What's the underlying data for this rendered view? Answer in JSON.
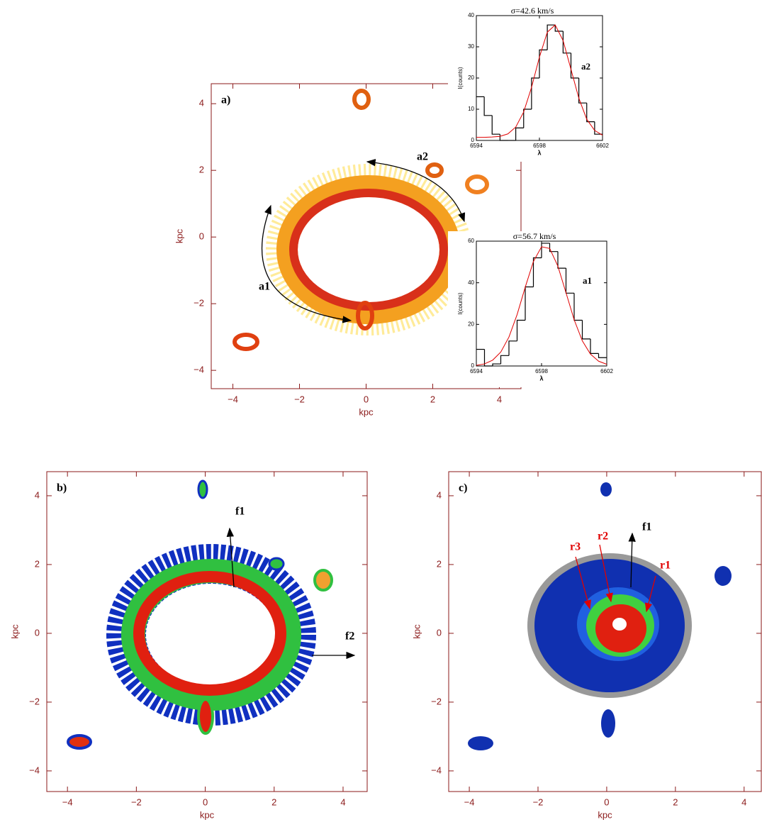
{
  "chart_data": [
    {
      "type": "image",
      "panel_label": "a)",
      "xlabel": "kpc",
      "ylabel": "kpc",
      "xlim": [
        -4.65,
        4.65
      ],
      "ylim": [
        -4.55,
        4.6
      ],
      "xticks": [
        {
          "value": -4,
          "label": "−4"
        },
        {
          "value": -2,
          "label": "−2"
        },
        0,
        2,
        4
      ],
      "yticks": [
        {
          "value": -4,
          "label": "−4"
        },
        {
          "value": -2,
          "label": "−2"
        },
        0,
        2,
        4
      ],
      "annotations": [
        "a1",
        "a2"
      ]
    },
    {
      "type": "image",
      "panel_label": "b)",
      "xlabel": "kpc",
      "ylabel": "kpc",
      "xlim": [
        -4.6,
        4.7
      ],
      "ylim": [
        -4.6,
        4.7
      ],
      "xticks": [
        {
          "value": -4,
          "label": "−4"
        },
        {
          "value": -2,
          "label": "−2"
        },
        0,
        2,
        4
      ],
      "yticks": [
        {
          "value": -4,
          "label": "−4"
        },
        {
          "value": -2,
          "label": "−2"
        },
        0,
        2,
        4
      ],
      "annotations": [
        "f1",
        "f2"
      ]
    },
    {
      "type": "image",
      "panel_label": "c)",
      "xlabel": "kpc",
      "ylabel": "kpc",
      "xlim": [
        -4.6,
        4.5
      ],
      "ylim": [
        -4.6,
        4.7
      ],
      "xticks": [
        {
          "value": -4,
          "label": "−4"
        },
        {
          "value": -2,
          "label": "−2"
        },
        0,
        2,
        4
      ],
      "yticks": [
        {
          "value": -4,
          "label": "−4"
        },
        {
          "value": -2,
          "label": "−2"
        },
        0,
        2,
        4
      ],
      "annotations": [
        "f1",
        "r1",
        "r2",
        "r3"
      ]
    },
    {
      "type": "histogram",
      "title": "σ=42.6  km/s",
      "xlabel": "λ",
      "ylabel": "I(counts)",
      "label": "a2",
      "xlim": [
        6594,
        6602
      ],
      "ylim": [
        0,
        40
      ],
      "xticks": [
        6594,
        6598,
        6602
      ],
      "yticks": [
        0,
        10,
        20,
        30,
        40
      ],
      "color": "#000000",
      "bins": [
        6594,
        6594.5,
        6595,
        6595.5,
        6596,
        6596.5,
        6597,
        6597.5,
        6598,
        6598.5,
        6599,
        6599.5,
        6600,
        6600.5,
        6601,
        6601.5,
        6602
      ],
      "counts": [
        14,
        8,
        2,
        0,
        0,
        4,
        10,
        20,
        29,
        37,
        35,
        28,
        20,
        12,
        6,
        2
      ],
      "fit": {
        "color": "#e00000",
        "x": [
          6594,
          6594.5,
          6595,
          6595.5,
          6596,
          6596.5,
          6597,
          6597.5,
          6598,
          6598.5,
          6599,
          6599.5,
          6600,
          6600.5,
          6601,
          6601.5,
          6602
        ],
        "values": [
          1.0,
          1.0,
          1.1,
          1.3,
          2.1,
          4.3,
          9.1,
          17,
          26.7,
          34.7,
          37,
          32,
          22.8,
          13.5,
          6.8,
          3.2,
          1.7
        ]
      }
    },
    {
      "type": "histogram",
      "title": "σ=56.7   km/s",
      "xlabel": "λ",
      "ylabel": "I(counts)",
      "label": "a1",
      "xlim": [
        6594,
        6602
      ],
      "ylim": [
        0,
        60
      ],
      "xticks": [
        6594,
        6598,
        6602
      ],
      "yticks": [
        0,
        20,
        40,
        60
      ],
      "color": "#000000",
      "bins": [
        6594,
        6594.5,
        6595,
        6595.5,
        6596,
        6596.5,
        6597,
        6597.5,
        6598,
        6598.5,
        6599,
        6599.5,
        6600,
        6600.5,
        6601,
        6601.5,
        6602
      ],
      "counts": [
        8,
        0,
        1,
        5,
        12,
        22,
        38,
        52,
        59,
        55,
        47,
        35,
        22,
        13,
        6,
        4
      ],
      "fit": {
        "color": "#e00000",
        "x": [
          6594,
          6594.5,
          6595,
          6595.5,
          6596,
          6596.5,
          6597,
          6597.5,
          6598,
          6598.5,
          6599,
          6599.5,
          6600,
          6600.5,
          6601,
          6601.5,
          6602
        ],
        "values": [
          0.3,
          1.0,
          2.8,
          6.7,
          13.9,
          24.7,
          37.9,
          50.2,
          57.3,
          56.5,
          48,
          35.2,
          22.2,
          12.1,
          5.7,
          2.3,
          0.8
        ]
      }
    }
  ]
}
